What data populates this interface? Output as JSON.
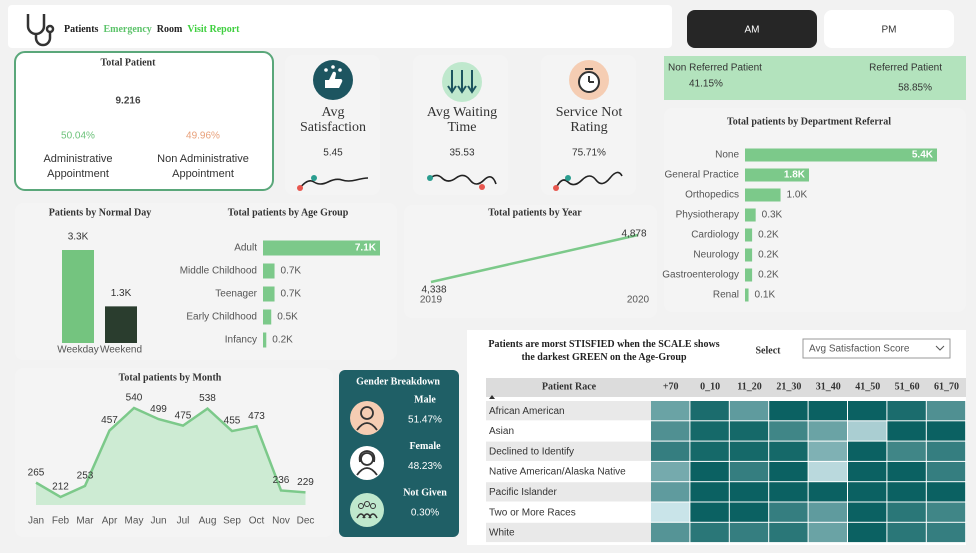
{
  "header": {
    "title": [
      {
        "text": "Patients",
        "color": "#222222"
      },
      {
        "text": "Emergency",
        "color": "#5cc36a"
      },
      {
        "text": "Room",
        "color": "#222222"
      },
      {
        "text": "Visit Report",
        "color": "#3fcf3f"
      }
    ]
  },
  "toggle": {
    "options": [
      {
        "label": "AM",
        "active": true
      },
      {
        "label": "PM",
        "active": false
      }
    ]
  },
  "total_patient": {
    "title": "Total Patient",
    "value": "9.216",
    "split": [
      {
        "value": "50.04%",
        "label": "Administrative Appointment",
        "color": "#6cc27a"
      },
      {
        "value": "49.96%",
        "label": "Non Administrative Appointment",
        "color": "#e8a07a"
      }
    ]
  },
  "kpis": [
    {
      "title": "Avg Satisfaction",
      "value": "5.45"
    },
    {
      "title": "Avg Waiting Time",
      "value": "35.53"
    },
    {
      "title": "Service Not Rating",
      "value": "75.71%"
    }
  ],
  "referral": [
    {
      "label": "Non Referred Patient",
      "value": "41.15%"
    },
    {
      "label": "Referred Patient",
      "value": "58.85%"
    }
  ],
  "gender": {
    "title": "Gender Breakdown",
    "items": [
      {
        "label": "Male",
        "value": "51.47%"
      },
      {
        "label": "Female",
        "value": "48.23%"
      },
      {
        "label": "Not Given",
        "value": "0.30%"
      }
    ]
  },
  "chart_data": [
    {
      "type": "bar",
      "orientation": "horizontal",
      "title": "Total patients by Department Referral",
      "categories": [
        "None",
        "General Practice",
        "Orthopedics",
        "Physiotherapy",
        "Cardiology",
        "Neurology",
        "Gastroenterology",
        "Renal"
      ],
      "values": [
        5400,
        1800,
        1000,
        300,
        200,
        200,
        200,
        100
      ],
      "value_labels": [
        "5.4K",
        "1.8K",
        "1.0K",
        "0.3K",
        "0.2K",
        "0.2K",
        "0.2K",
        "0.1K"
      ],
      "color": "#7cc98a"
    },
    {
      "type": "bar",
      "orientation": "vertical",
      "title": "Patients by Normal Day",
      "categories": [
        "Weekday",
        "Weekend"
      ],
      "values": [
        3300,
        1300
      ],
      "value_labels": [
        "3.3K",
        "1.3K"
      ],
      "colors": [
        "#74c47f",
        "#2a3d2e"
      ]
    },
    {
      "type": "bar",
      "orientation": "horizontal",
      "title": "Total patients by Age Group",
      "categories": [
        "Adult",
        "Middle Childhood",
        "Teenager",
        "Early Childhood",
        "Infancy"
      ],
      "values": [
        7100,
        700,
        700,
        500,
        200
      ],
      "value_labels": [
        "7.1K",
        "0.7K",
        "0.7K",
        "0.5K",
        "0.2K"
      ],
      "color": "#7cc98a"
    },
    {
      "type": "line",
      "title": "Total patients by Year",
      "x": [
        2019,
        2020
      ],
      "values": [
        4338,
        4878
      ],
      "value_labels": [
        "4,338",
        "4,878"
      ],
      "color": "#7cc98a"
    },
    {
      "type": "area",
      "title": "Total patients by Month",
      "categories": [
        "Jan",
        "Feb",
        "Mar",
        "Apr",
        "May",
        "Jun",
        "Jul",
        "Aug",
        "Sep",
        "Oct",
        "Nov",
        "Dec"
      ],
      "values": [
        265,
        212,
        253,
        457,
        540,
        499,
        475,
        538,
        455,
        473,
        236,
        229
      ],
      "color": "#7cc98a"
    },
    {
      "type": "heatmap",
      "title": "Patients are morst STISFIED when the SCALE shows the darkest GREEN on the Age-Group",
      "control_label": "Select",
      "control_value": "Avg Satisfaction Score",
      "y_label": "Patient Race",
      "x": [
        "+70",
        "0_10",
        "11_20",
        "21_30",
        "31_40",
        "41_50",
        "51_60",
        "61_70"
      ],
      "y": [
        "African American",
        "Asian",
        "Declined to Identify",
        "Native American/Alaska Native",
        "Pacific Islander",
        "Two or More Races",
        "White"
      ],
      "values": [
        [
          5.0,
          6.5,
          5.2,
          6.8,
          6.8,
          6.8,
          6.5,
          5.5
        ],
        [
          5.5,
          6.6,
          6.6,
          5.8,
          5.0,
          3.8,
          6.8,
          6.8
        ],
        [
          6.0,
          6.6,
          6.6,
          6.6,
          4.6,
          6.8,
          5.8,
          6.0
        ],
        [
          4.8,
          6.8,
          6.0,
          6.8,
          3.5,
          6.8,
          6.8,
          6.0
        ],
        [
          5.2,
          6.8,
          6.8,
          6.8,
          6.8,
          6.8,
          6.8,
          6.8
        ],
        [
          3.2,
          6.8,
          6.8,
          6.0,
          5.2,
          6.8,
          6.2,
          5.8
        ],
        [
          5.4,
          6.2,
          6.0,
          6.2,
          5.0,
          6.8,
          6.2,
          6.0
        ]
      ],
      "zlim": [
        3,
        7
      ],
      "colors": [
        "#d4ebf0",
        "#005a5a"
      ]
    }
  ]
}
